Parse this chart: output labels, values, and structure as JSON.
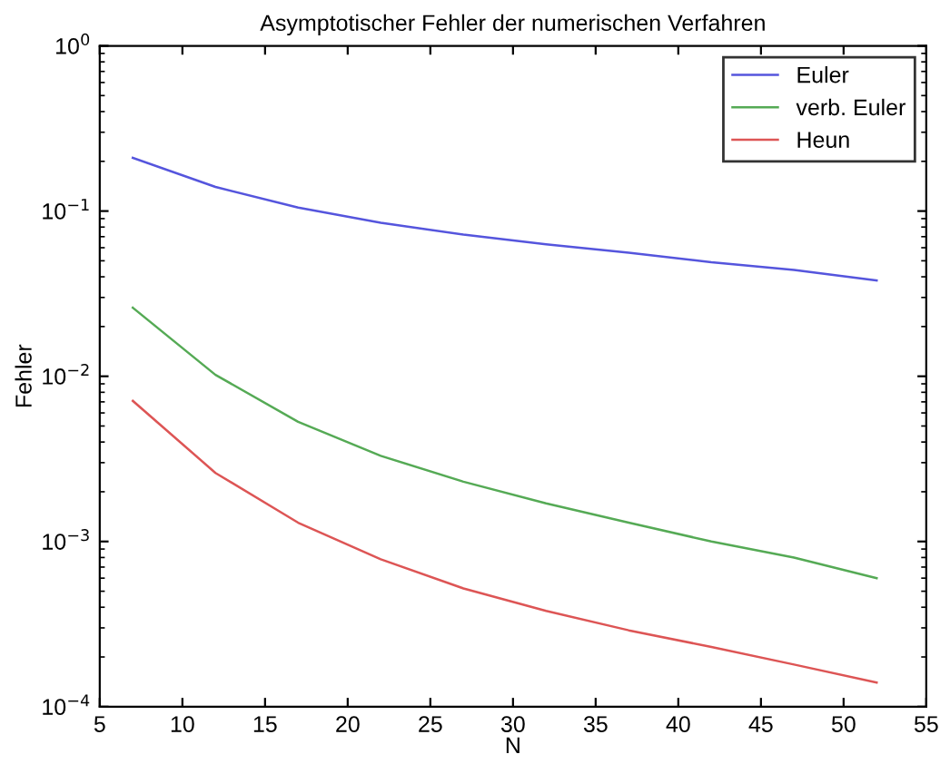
{
  "chart_data": {
    "type": "line",
    "title": "Asymptotischer Fehler der numerischen Verfahren",
    "xlabel": "N",
    "ylabel": "Fehler",
    "x": [
      7,
      12,
      17,
      22,
      27,
      32,
      37,
      42,
      47,
      52
    ],
    "series": [
      {
        "name": "Euler",
        "color": "#5555dd",
        "values": [
          0.21,
          0.14,
          0.105,
          0.085,
          0.072,
          0.063,
          0.056,
          0.049,
          0.044,
          0.038
        ]
      },
      {
        "name": "verb. Euler",
        "color": "#55aa55",
        "values": [
          0.026,
          0.0102,
          0.0053,
          0.0033,
          0.0023,
          0.0017,
          0.0013,
          0.001,
          0.0008,
          0.0006
        ]
      },
      {
        "name": "Heun",
        "color": "#dd5555",
        "values": [
          0.0071,
          0.0026,
          0.0013,
          0.00078,
          0.00052,
          0.00038,
          0.00029,
          0.00023,
          0.00018,
          0.00014
        ]
      }
    ],
    "log": "y",
    "xlim": [
      5,
      55
    ],
    "ylim": [
      0.0001,
      1
    ],
    "xticks": [
      5,
      10,
      15,
      20,
      25,
      30,
      35,
      40,
      45,
      50,
      55
    ],
    "yticks": [
      {
        "value": 0.0001,
        "label": "10$^{−4}$"
      },
      {
        "value": 0.001,
        "label": "10$^{−3}$"
      },
      {
        "value": 0.01,
        "label": "10$^{−2}$"
      },
      {
        "value": 0.1,
        "label": "10$^{−1}$"
      },
      {
        "value": 1,
        "label": "10$^{0}$"
      }
    ],
    "grid": false,
    "legend": "top right",
    "marker": "none",
    "line_style": "solid"
  }
}
